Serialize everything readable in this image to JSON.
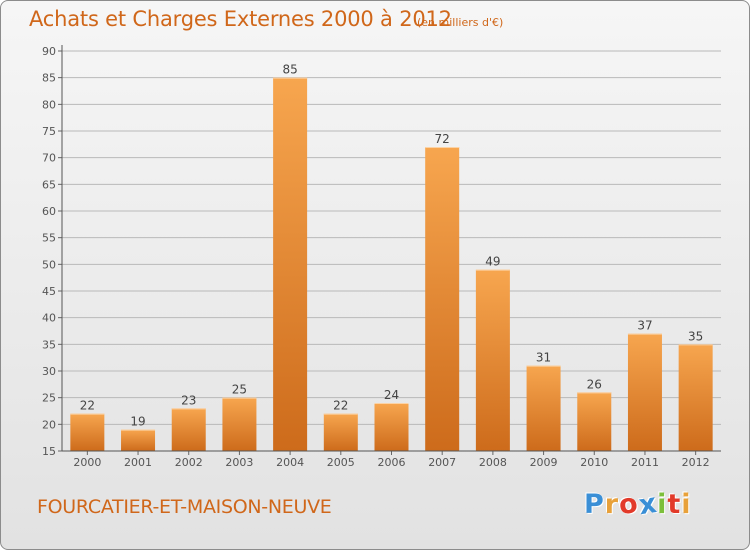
{
  "header": {
    "title": "Achats et Charges Externes 2000 à 2012",
    "unit": "(en milliers d'€)"
  },
  "footer": {
    "town": "FOURCATIER-ET-MAISON-NEUVE",
    "logo": [
      "P",
      "r",
      "o",
      "x",
      "i",
      "t",
      "i"
    ],
    "logo_colors": [
      "#3a8fd6",
      "#e8a13a",
      "#e23a2a",
      "#3a8fd6",
      "#7cbf3a",
      "#e23a2a",
      "#e8a13a"
    ]
  },
  "colors": {
    "bar_light": "#f7a64f",
    "bar_dark": "#cd6b1b",
    "text_accent": "#d0671a",
    "grid": "#b9b9b9"
  },
  "chart_data": {
    "type": "bar",
    "categories": [
      "2000",
      "2001",
      "2002",
      "2003",
      "2004",
      "2005",
      "2006",
      "2007",
      "2008",
      "2009",
      "2010",
      "2011",
      "2012"
    ],
    "values": [
      22,
      19,
      23,
      25,
      85,
      22,
      24,
      72,
      49,
      31,
      26,
      37,
      35
    ],
    "ylim": [
      15,
      90
    ],
    "yticks": [
      15,
      20,
      25,
      30,
      35,
      40,
      45,
      50,
      55,
      60,
      65,
      70,
      75,
      80,
      85,
      90
    ],
    "grid": true,
    "legend": "none"
  }
}
